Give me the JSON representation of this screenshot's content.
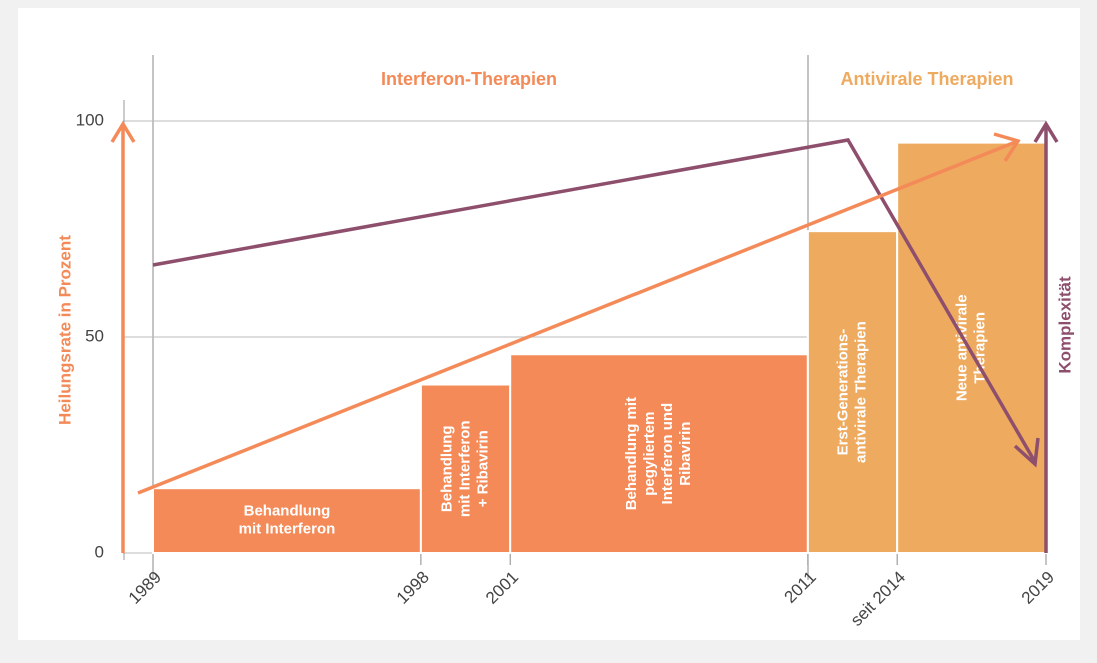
{
  "chart_data": {
    "type": "bar",
    "sections": [
      "Interferon-Therapien",
      "Antivirale Therapien"
    ],
    "ylabel": "Heilungsrate in Prozent",
    "y2label": "Komplexität",
    "xlim": [
      1989,
      2019
    ],
    "xticks": [
      1989,
      1998,
      2001,
      2011,
      {
        "value": 2014,
        "label": "seit 2014"
      },
      2019
    ],
    "ylim": [
      0,
      100
    ],
    "yticks": [
      0,
      50,
      100
    ],
    "grid": true,
    "bars": [
      {
        "start": 1989,
        "end": 1998,
        "value": 15,
        "color": "#f38a58",
        "label": [
          "Behandlung",
          "mit Interferon"
        ]
      },
      {
        "start": 1998,
        "end": 2001,
        "value": 39,
        "color": "#f38a58",
        "label": [
          "Behandlung",
          "mit Interferon",
          "+ Ribavirin"
        ]
      },
      {
        "start": 2001,
        "end": 2011,
        "value": 46,
        "color": "#f38a58",
        "label": [
          "Behandlung mit",
          "pegyliertem",
          "Interferon und",
          "Ribavirin"
        ]
      },
      {
        "start": 2011,
        "end": 2014,
        "value": 74.5,
        "color": "#eeaa5f",
        "label": [
          "Erst-Generations-",
          "antivirale Therapien"
        ]
      },
      {
        "start": 2014,
        "end": 2019,
        "value": 95,
        "color": "#eeaa5f",
        "label": [
          "Neue antivirale",
          "Therapien"
        ]
      }
    ]
  }
}
